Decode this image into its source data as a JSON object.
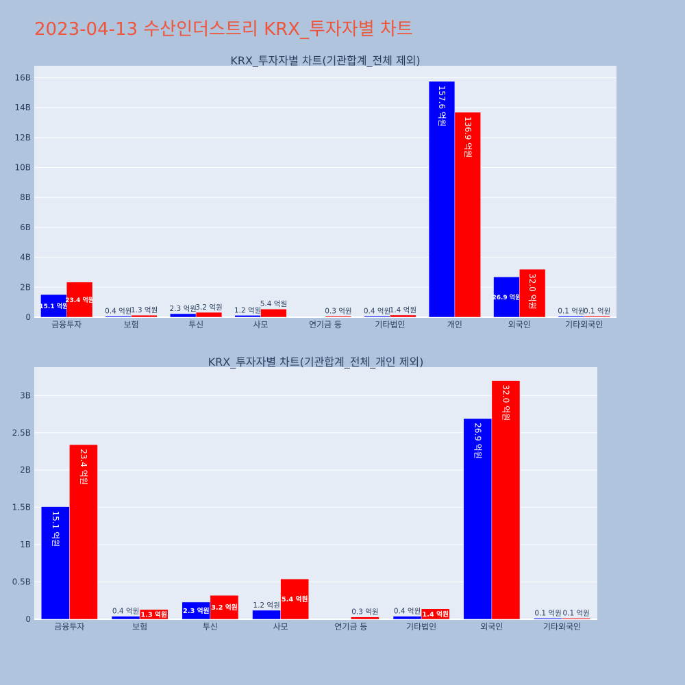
{
  "page_title": "2023-04-13 수산인더스트리 KRX_투자자별 차트",
  "colors": {
    "series_a": "#0000ff",
    "series_b": "#ff0000",
    "plot_bg": "#e5ecf6",
    "page_bg": "#b0c4de",
    "title": "#ef553b"
  },
  "chart_data": [
    {
      "type": "bar",
      "title": "KRX_투자자별 차트(기관합계_전체 제외)",
      "categories": [
        "금융투자",
        "보험",
        "투신",
        "사모",
        "연기금 등",
        "기타법인",
        "개인",
        "외국인",
        "기타외국인"
      ],
      "series": [
        {
          "values": [
            1510000000,
            40000000,
            230000000,
            120000000,
            0,
            40000000,
            15760000000,
            2690000000,
            10000000
          ],
          "labels": [
            "15.1 억원",
            "0.4 억원",
            "2.3 억원",
            "1.2 억원",
            "",
            "0.4 억원",
            "157.6 억원",
            "26.9 억원",
            "0.1 억원"
          ]
        },
        {
          "values": [
            2340000000,
            130000000,
            320000000,
            540000000,
            30000000,
            140000000,
            13690000000,
            3200000000,
            10000000
          ],
          "labels": [
            "23.4 억원",
            "1.3 억원",
            "3.2 억원",
            "5.4 억원",
            "0.3 억원",
            "1.4 억원",
            "136.9 억원",
            "32.0 억원",
            "0.1 억원"
          ]
        }
      ],
      "ylim": [
        0,
        16800000000
      ],
      "yticks": [
        0,
        2000000000,
        4000000000,
        6000000000,
        8000000000,
        10000000000,
        12000000000,
        14000000000,
        16000000000
      ],
      "ytick_labels": [
        "0",
        "2B",
        "4B",
        "6B",
        "8B",
        "10B",
        "12B",
        "14B",
        "16B"
      ],
      "grid": true
    },
    {
      "type": "bar",
      "title": "KRX_투자자별 차트(기관합계_전체_개인 제외)",
      "categories": [
        "금융투자",
        "보험",
        "투신",
        "사모",
        "연기금 등",
        "기타법인",
        "외국인",
        "기타외국인"
      ],
      "series": [
        {
          "values": [
            1510000000,
            40000000,
            230000000,
            120000000,
            0,
            40000000,
            2690000000,
            10000000
          ],
          "labels": [
            "15.1 억원",
            "0.4 억원",
            "2.3 억원",
            "1.2 억원",
            "",
            "0.4 억원",
            "26.9 억원",
            "0.1 억원"
          ]
        },
        {
          "values": [
            2340000000,
            130000000,
            320000000,
            540000000,
            30000000,
            140000000,
            3200000000,
            10000000
          ],
          "labels": [
            "23.4 억원",
            "1.3 억원",
            "3.2 억원",
            "5.4 억원",
            "0.3 억원",
            "1.4 억원",
            "32.0 억원",
            "0.1 억원"
          ]
        }
      ],
      "ylim": [
        0,
        3380000000
      ],
      "yticks": [
        0,
        500000000,
        1000000000,
        1500000000,
        2000000000,
        2500000000,
        3000000000
      ],
      "ytick_labels": [
        "0",
        "0.5B",
        "1B",
        "1.5B",
        "2B",
        "2.5B",
        "3B"
      ],
      "grid": true
    }
  ]
}
